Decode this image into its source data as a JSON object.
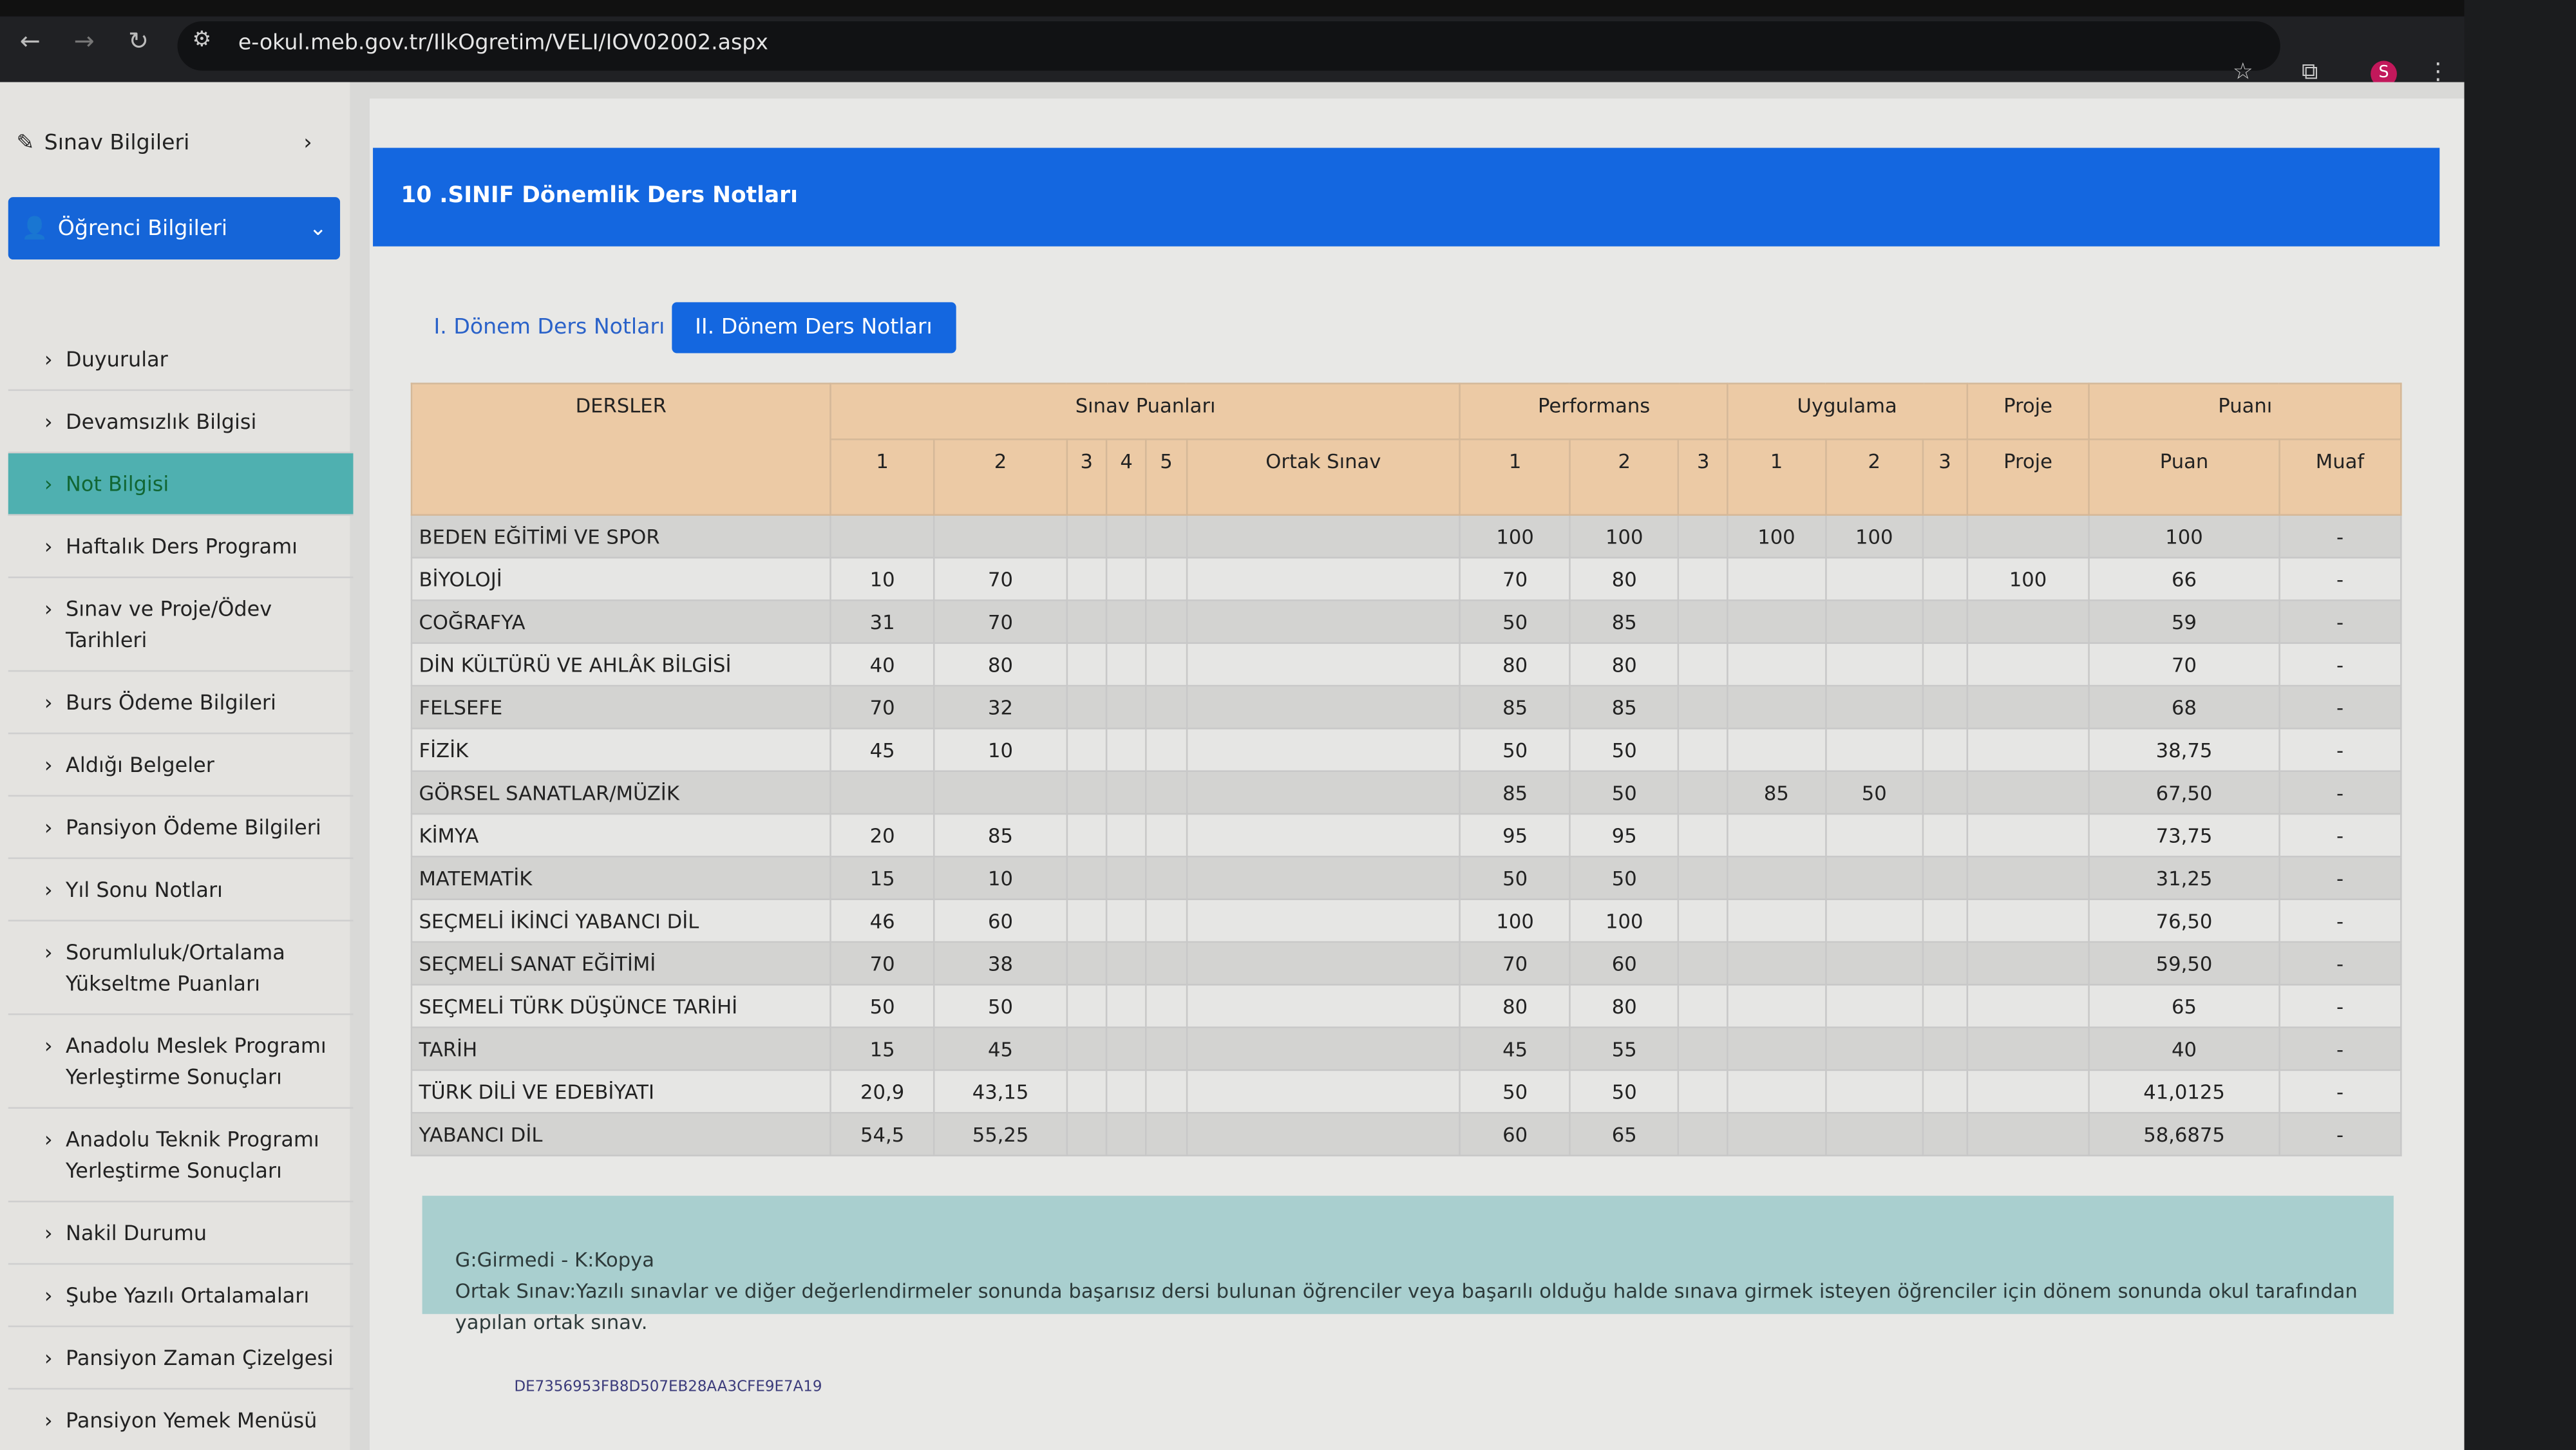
{
  "browser": {
    "url": "e-okul.meb.gov.tr/IlkOgretim/VELI/IOV02002.aspx",
    "avatar": "S",
    "back": "←",
    "forward": "→",
    "reload": "↻",
    "site_info": "⚙",
    "bookmark": "☆",
    "extensions": "⧉",
    "menu": "⋮"
  },
  "sidebar": {
    "sinav": "Sınav Bilgileri",
    "ogrenci": "Öğrenci Bilgileri",
    "items": [
      {
        "label": "Duyurular"
      },
      {
        "label": "Devamsızlık Bilgisi"
      },
      {
        "label": "Not Bilgisi",
        "active": true
      },
      {
        "label": "Haftalık Ders Programı"
      },
      {
        "label": "Sınav ve Proje/Ödev Tarihleri"
      },
      {
        "label": "Burs Ödeme Bilgileri"
      },
      {
        "label": "Aldığı Belgeler"
      },
      {
        "label": "Pansiyon Ödeme Bilgileri"
      },
      {
        "label": "Yıl Sonu Notları"
      },
      {
        "label": "Sorumluluk/Ortalama Yükseltme Puanları"
      },
      {
        "label": "Anadolu Meslek Programı Yerleştirme Sonuçları"
      },
      {
        "label": "Anadolu Teknik Programı Yerleştirme Sonuçları"
      },
      {
        "label": "Nakil Durumu"
      },
      {
        "label": "Şube Yazılı Ortalamaları"
      },
      {
        "label": "Pansiyon Zaman Çizelgesi"
      },
      {
        "label": "Pansiyon Yemek Menüsü"
      }
    ]
  },
  "main": {
    "title": "10 .SINIF Dönemlik Ders Notları",
    "tabs": [
      {
        "label": "I. Dönem Ders Notları",
        "active": false
      },
      {
        "label": "II. Dönem Ders Notları",
        "active": true
      }
    ],
    "headers": {
      "dersler": "DERSLER",
      "sinav": "Sınav Puanları",
      "performans": "Performans",
      "uygulama": "Uygulama",
      "proje": "Proje",
      "puani": "Puanı",
      "sub": [
        "1",
        "2",
        "3",
        "4",
        "5",
        "Ortak Sınav",
        "1",
        "2",
        "3",
        "1",
        "2",
        "3",
        "Proje",
        "Puan",
        "Muaf"
      ]
    },
    "rows": [
      [
        "BEDEN EĞİTİMİ VE SPOR",
        "",
        "",
        "",
        "",
        "",
        "",
        "100",
        "100",
        "",
        "100",
        "100",
        "",
        "",
        "100",
        "-"
      ],
      [
        "BİYOLOJİ",
        "10",
        "70",
        "",
        "",
        "",
        "",
        "70",
        "80",
        "",
        "",
        "",
        "",
        "100",
        "66",
        "-"
      ],
      [
        "COĞRAFYA",
        "31",
        "70",
        "",
        "",
        "",
        "",
        "50",
        "85",
        "",
        "",
        "",
        "",
        "",
        "59",
        "-"
      ],
      [
        "DİN KÜLTÜRÜ VE AHLÂK BİLGİSİ",
        "40",
        "80",
        "",
        "",
        "",
        "",
        "80",
        "80",
        "",
        "",
        "",
        "",
        "",
        "70",
        "-"
      ],
      [
        "FELSEFE",
        "70",
        "32",
        "",
        "",
        "",
        "",
        "85",
        "85",
        "",
        "",
        "",
        "",
        "",
        "68",
        "-"
      ],
      [
        "FİZİK",
        "45",
        "10",
        "",
        "",
        "",
        "",
        "50",
        "50",
        "",
        "",
        "",
        "",
        "",
        "38,75",
        "-"
      ],
      [
        "GÖRSEL SANATLAR/MÜZİK",
        "",
        "",
        "",
        "",
        "",
        "",
        "85",
        "50",
        "",
        "85",
        "50",
        "",
        "",
        "67,50",
        "-"
      ],
      [
        "KİMYA",
        "20",
        "85",
        "",
        "",
        "",
        "",
        "95",
        "95",
        "",
        "",
        "",
        "",
        "",
        "73,75",
        "-"
      ],
      [
        "MATEMATİK",
        "15",
        "10",
        "",
        "",
        "",
        "",
        "50",
        "50",
        "",
        "",
        "",
        "",
        "",
        "31,25",
        "-"
      ],
      [
        "SEÇMELİ İKİNCİ YABANCI DİL",
        "46",
        "60",
        "",
        "",
        "",
        "",
        "100",
        "100",
        "",
        "",
        "",
        "",
        "",
        "76,50",
        "-"
      ],
      [
        "SEÇMELİ SANAT EĞİTİMİ",
        "70",
        "38",
        "",
        "",
        "",
        "",
        "70",
        "60",
        "",
        "",
        "",
        "",
        "",
        "59,50",
        "-"
      ],
      [
        "SEÇMELİ TÜRK DÜŞÜNCE TARİHİ",
        "50",
        "50",
        "",
        "",
        "",
        "",
        "80",
        "80",
        "",
        "",
        "",
        "",
        "",
        "65",
        "-"
      ],
      [
        "TARİH",
        "15",
        "45",
        "",
        "",
        "",
        "",
        "45",
        "55",
        "",
        "",
        "",
        "",
        "",
        "40",
        "-"
      ],
      [
        "TÜRK DİLİ VE EDEBİYATI",
        "20,9",
        "43,15",
        "",
        "",
        "",
        "",
        "50",
        "50",
        "",
        "",
        "",
        "",
        "",
        "41,0125",
        "-"
      ],
      [
        "YABANCI DİL",
        "54,5",
        "55,25",
        "",
        "",
        "",
        "",
        "60",
        "65",
        "",
        "",
        "",
        "",
        "",
        "58,6875",
        "-"
      ]
    ],
    "note": {
      "line1": "G:Girmedi - K:Kopya",
      "line2": "Ortak Sınav:Yazılı sınavlar ve diğer değerlendirmeler sonunda başarısız dersi bulunan öğrenciler veya başarılı olduğu halde sınava girmek isteyen öğrenciler için dönem sonunda okul tarafından yapılan ortak sınav."
    },
    "hash": "DE7356953FB8D507EB28AA3CFE9E7A19"
  },
  "colors": {
    "primary": "#1467e0",
    "active_sidebar": "#4fb0b0",
    "table_header": "#eccaa5",
    "note_bg": "#a9cfcf"
  }
}
